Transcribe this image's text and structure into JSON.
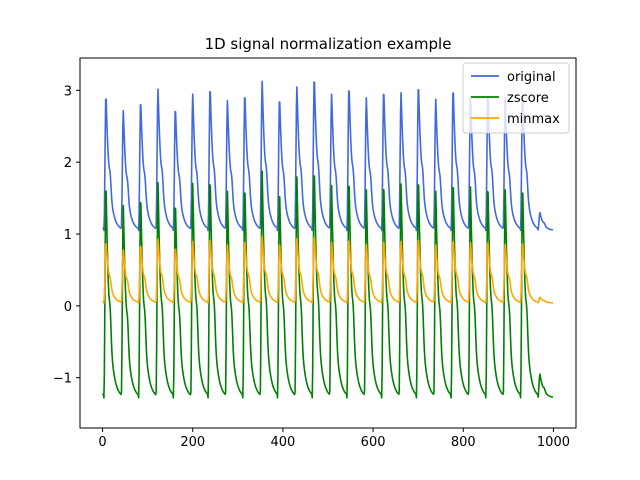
{
  "chart_data": {
    "type": "line",
    "title": "1D signal normalization example",
    "xlabel": "",
    "ylabel": "",
    "xlim": [
      -50,
      1050
    ],
    "ylim": [
      -1.7,
      3.45
    ],
    "xticks": [
      0,
      200,
      400,
      600,
      800,
      1000
    ],
    "yticks": [
      -1,
      0,
      1,
      2,
      3
    ],
    "ytick_labels": [
      "−1",
      "0",
      "1",
      "2",
      "3"
    ],
    "grid": false,
    "legend_position": "top-right",
    "x_range": [
      0,
      999
    ],
    "series": [
      {
        "name": "original",
        "color": "#4169e1",
        "period": 38.5,
        "base": 1.05,
        "peaks": [
          2.82,
          2.96,
          2.72,
          2.88,
          3.02,
          2.78,
          2.95,
          3.07,
          2.86,
          2.98,
          3.13,
          2.92,
          3.05,
          3.21,
          2.95,
          3.08,
          2.9,
          3.03,
          2.97,
          3.1,
          2.88,
          3.05,
          2.92,
          3.0,
          2.9,
          2.98,
          1.3
        ]
      },
      {
        "name": "zscore",
        "color": "#008000",
        "period": 38.5,
        "base": -1.28,
        "peaks": [
          1.46,
          1.73,
          1.4,
          1.56,
          1.72,
          1.48,
          1.71,
          1.82,
          1.6,
          1.7,
          1.88,
          1.65,
          1.8,
          1.95,
          1.68,
          1.8,
          1.62,
          1.75,
          1.7,
          1.82,
          1.6,
          1.78,
          1.66,
          1.72,
          1.62,
          1.7,
          -0.95
        ]
      },
      {
        "name": "minmax",
        "color": "#ffa500",
        "period": 38.5,
        "base": 0.04,
        "peaks": [
          0.82,
          0.9,
          0.78,
          0.86,
          0.93,
          0.82,
          0.9,
          0.95,
          0.85,
          0.92,
          0.97,
          0.88,
          0.94,
          0.99,
          0.88,
          0.94,
          0.86,
          0.92,
          0.9,
          0.95,
          0.85,
          0.93,
          0.88,
          0.91,
          0.86,
          0.9,
          0.12
        ]
      }
    ]
  }
}
